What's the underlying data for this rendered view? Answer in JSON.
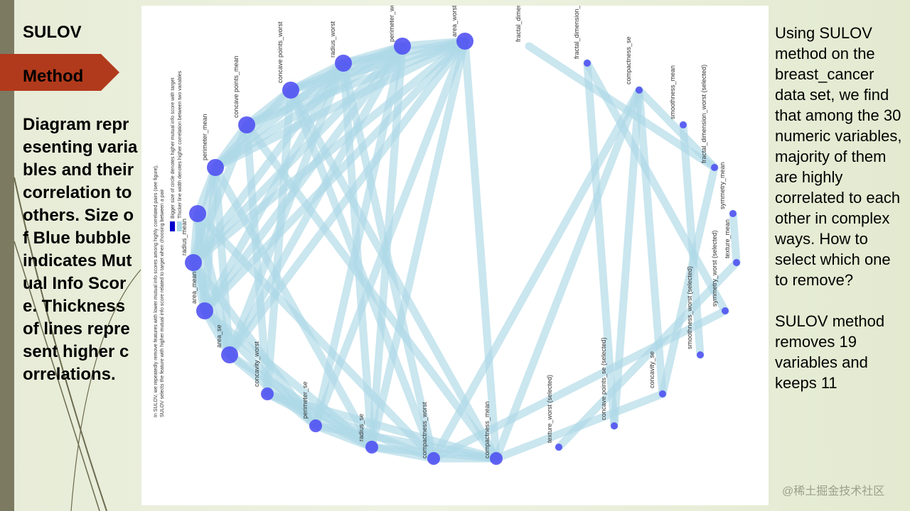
{
  "slide": {
    "title": "SULOV",
    "section_label": "Method",
    "left_description": "Diagram representing variables and their correlation to others. Size of Blue bubble indicates Mutual Info Score. Thickness of lines represent higher correlations.",
    "right_paragraphs": [
      "Using SULOV method on the breast_cancer data set, we find that among the 30 numeric variables, majority of them are highly correlated to each other in complex ways. How to select which one to remove?",
      "SULOV method removes 19 variables and keeps 11"
    ],
    "watermark": "@稀土掘金技术社区"
  },
  "figure": {
    "caption_lines": [
      "In SULOV, we repeatedly remove features with lower mutual info scores among highly correlated pairs (see figure),",
      "SULOV selects the feature with higher mutual info score related to target when choosing between a pair"
    ],
    "legend": [
      "Bigger size of circle denotes higher mutual info score with target",
      "Thicker line width denotes higher correlation between two variables"
    ],
    "node_color": "#4d4df2",
    "edge_color": "#add8e6",
    "nodes": [
      {
        "id": "area_worst",
        "label": "area_worst (se",
        "size": 3
      },
      {
        "id": "perimeter_worst",
        "label": "perimeter_wo",
        "size": 3
      },
      {
        "id": "radius_worst",
        "label": "radius_worst",
        "size": 3
      },
      {
        "id": "concave_points_worst",
        "label": "concave points_worst",
        "size": 3
      },
      {
        "id": "concave_points_mean",
        "label": "concave points_mean",
        "size": 3
      },
      {
        "id": "perimeter_mean",
        "label": "perimeter_mean",
        "size": 3
      },
      {
        "id": "area_mean_hidden",
        "label": "",
        "size": 3
      },
      {
        "id": "radius_mean",
        "label": "radius_mean",
        "size": 3
      },
      {
        "id": "area_mean",
        "label": "area_mean",
        "size": 3
      },
      {
        "id": "area_se",
        "label": "area_se",
        "size": 3
      },
      {
        "id": "concavity_worst",
        "label": "concavity_worst",
        "size": 2
      },
      {
        "id": "perimeter_se",
        "label": "perimeter_se",
        "size": 2
      },
      {
        "id": "radius_se",
        "label": "radius_se",
        "size": 2
      },
      {
        "id": "compactness_worst",
        "label": "compactness_worst",
        "size": 2
      },
      {
        "id": "compactness_mean",
        "label": "compactness_mean",
        "size": 2
      },
      {
        "id": "texture_worst",
        "label": "texture_worst (selected)",
        "size": 1
      },
      {
        "id": "concave_points_se",
        "label": "concave points_se (selected)",
        "size": 1
      },
      {
        "id": "concavity_se",
        "label": "concavity_se",
        "size": 1
      },
      {
        "id": "smoothness_worst",
        "label": "smoothness_worst (selected)",
        "size": 1
      },
      {
        "id": "symmetry_worst",
        "label": "symmetry_worst (selected)",
        "size": 1
      },
      {
        "id": "texture_mean",
        "label": "texture_mean",
        "size": 1
      },
      {
        "id": "symmetry_mean",
        "label": "symmetry_mean",
        "size": 1
      },
      {
        "id": "fractal_dimension_worst",
        "label": "fractal_dimension_worst (selected)",
        "size": 1
      },
      {
        "id": "smoothness_mean",
        "label": "smoothness_mean",
        "size": 1
      },
      {
        "id": "compactness_se",
        "label": "compactness_se",
        "size": 1
      },
      {
        "id": "fractal_dimension_se",
        "label": "fractal_dimension_se (selecte",
        "size": 1
      },
      {
        "id": "fractal_dimension",
        "label": "fractal_dimension",
        "size": 0
      }
    ],
    "edges": [
      [
        "area_worst",
        "perimeter_worst"
      ],
      [
        "area_worst",
        "radius_worst"
      ],
      [
        "area_worst",
        "concave_points_worst"
      ],
      [
        "area_worst",
        "concave_points_mean"
      ],
      [
        "area_worst",
        "perimeter_mean"
      ],
      [
        "area_worst",
        "radius_mean"
      ],
      [
        "area_worst",
        "area_mean"
      ],
      [
        "area_worst",
        "area_se"
      ],
      [
        "area_worst",
        "perimeter_se"
      ],
      [
        "area_worst",
        "radius_se"
      ],
      [
        "area_worst",
        "compactness_mean"
      ],
      [
        "perimeter_worst",
        "radius_worst"
      ],
      [
        "perimeter_worst",
        "concave_points_worst"
      ],
      [
        "perimeter_worst",
        "concave_points_mean"
      ],
      [
        "perimeter_worst",
        "perimeter_mean"
      ],
      [
        "perimeter_worst",
        "radius_mean"
      ],
      [
        "perimeter_worst",
        "area_mean"
      ],
      [
        "perimeter_worst",
        "area_se"
      ],
      [
        "perimeter_worst",
        "perimeter_se"
      ],
      [
        "perimeter_worst",
        "radius_se"
      ],
      [
        "radius_worst",
        "concave_points_worst"
      ],
      [
        "radius_worst",
        "perimeter_mean"
      ],
      [
        "radius_worst",
        "radius_mean"
      ],
      [
        "radius_worst",
        "area_mean"
      ],
      [
        "radius_worst",
        "area_se"
      ],
      [
        "radius_worst",
        "radius_se"
      ],
      [
        "radius_worst",
        "compactness_worst"
      ],
      [
        "concave_points_worst",
        "concave_points_mean"
      ],
      [
        "concave_points_worst",
        "perimeter_mean"
      ],
      [
        "concave_points_worst",
        "concavity_worst"
      ],
      [
        "concave_points_worst",
        "compactness_worst"
      ],
      [
        "concave_points_worst",
        "compactness_mean"
      ],
      [
        "concave_points_mean",
        "perimeter_mean"
      ],
      [
        "concave_points_mean",
        "radius_mean"
      ],
      [
        "concave_points_mean",
        "concavity_worst"
      ],
      [
        "concave_points_mean",
        "compactness_mean"
      ],
      [
        "perimeter_mean",
        "area_mean_hidden"
      ],
      [
        "perimeter_mean",
        "radius_mean"
      ],
      [
        "perimeter_mean",
        "area_mean"
      ],
      [
        "perimeter_mean",
        "area_se"
      ],
      [
        "perimeter_mean",
        "radius_se"
      ],
      [
        "area_mean_hidden",
        "radius_mean"
      ],
      [
        "area_mean_hidden",
        "area_mean"
      ],
      [
        "area_mean_hidden",
        "area_se"
      ],
      [
        "area_mean_hidden",
        "compactness_worst"
      ],
      [
        "radius_mean",
        "area_mean"
      ],
      [
        "radius_mean",
        "area_se"
      ],
      [
        "radius_mean",
        "perimeter_se"
      ],
      [
        "area_mean",
        "area_se"
      ],
      [
        "area_mean",
        "perimeter_se"
      ],
      [
        "area_mean",
        "radius_se"
      ],
      [
        "area_se",
        "perimeter_se"
      ],
      [
        "area_se",
        "radius_se"
      ],
      [
        "concavity_worst",
        "compactness_worst"
      ],
      [
        "concavity_worst",
        "compactness_mean"
      ],
      [
        "concavity_worst",
        "radius_se"
      ],
      [
        "perimeter_se",
        "radius_se"
      ],
      [
        "perimeter_se",
        "compactness_mean"
      ],
      [
        "radius_se",
        "compactness_worst"
      ],
      [
        "radius_se",
        "compactness_mean"
      ],
      [
        "compactness_worst",
        "compactness_mean"
      ],
      [
        "compactness_worst",
        "compactness_se"
      ],
      [
        "compactness_worst",
        "symmetry_worst"
      ],
      [
        "compactness_mean",
        "compactness_se"
      ],
      [
        "compactness_mean",
        "concavity_se"
      ],
      [
        "texture_worst",
        "texture_mean"
      ],
      [
        "concave_points_se",
        "compactness_se"
      ],
      [
        "concave_points_se",
        "fractal_dimension_se"
      ],
      [
        "concavity_se",
        "compactness_se"
      ],
      [
        "concavity_se",
        "fractal_dimension_worst"
      ],
      [
        "smoothness_worst",
        "smoothness_mean"
      ],
      [
        "symmetry_worst",
        "fractal_dimension_se"
      ],
      [
        "texture_mean",
        "symmetry_mean"
      ],
      [
        "fractal_dimension",
        "fractal_dimension_worst"
      ],
      [
        "compactness_se",
        "fractal_dimension_worst"
      ]
    ]
  }
}
